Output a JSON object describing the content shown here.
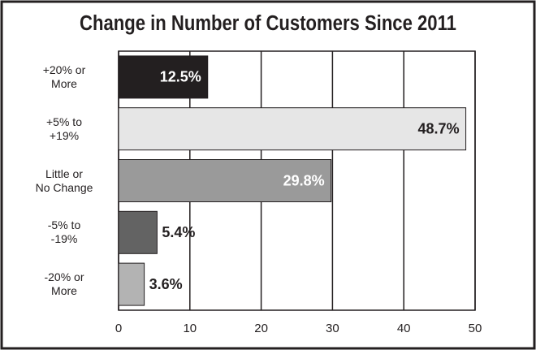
{
  "chart_data": {
    "type": "hbar",
    "title": "Change in Number of Customers Since 2011",
    "categories": [
      "+20% or\nMore",
      "+5% to\n+19%",
      "Little or\nNo Change",
      "-5% to\n-19%",
      "-20% or\nMore"
    ],
    "values": [
      12.5,
      48.7,
      29.8,
      5.4,
      3.6
    ],
    "value_labels": [
      "12.5%",
      "48.7%",
      "29.8%",
      "5.4%",
      "3.6%"
    ],
    "colors": [
      "#231f20",
      "#e6e6e6",
      "#9a9a9a",
      "#636363",
      "#b3b3b3"
    ],
    "xlim": [
      0,
      50
    ],
    "xticks": [
      0,
      10,
      20,
      30,
      40,
      50
    ],
    "grid": true
  }
}
